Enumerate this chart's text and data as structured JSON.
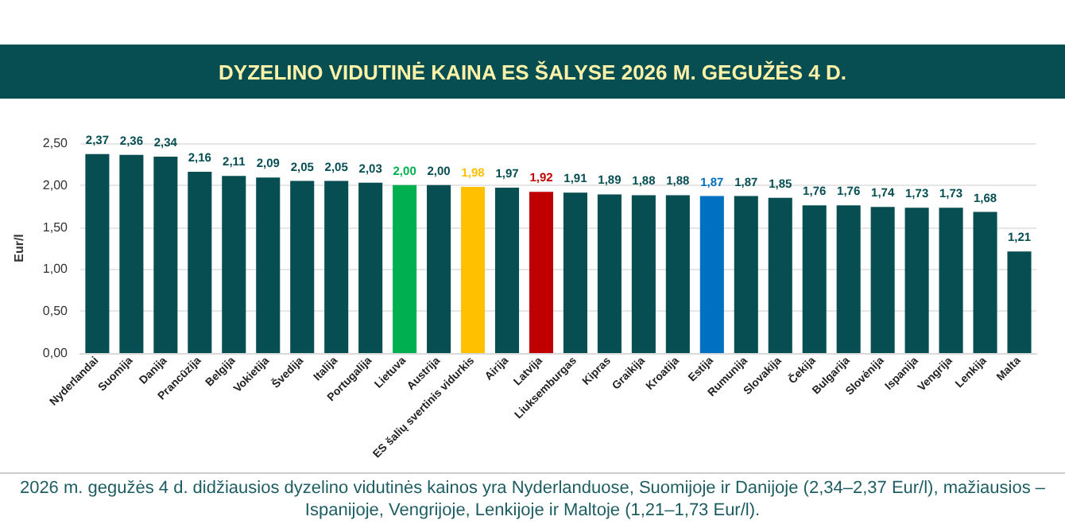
{
  "chart_data": {
    "type": "bar",
    "title": "DYZELINO VIDUTINĖ KAINA ES ŠALYSE 2026 M. GEGUŽĖS 4 D.",
    "ylabel": "Eur/l",
    "categories": [
      "Nyderlandai",
      "Suomija",
      "Danija",
      "Prancūzija",
      "Belgija",
      "Vokietija",
      "Švedija",
      "Italija",
      "Portugalija",
      "Lietuva",
      "Austrija",
      "ES šalių svertinis vidurkis",
      "Airija",
      "Latvija",
      "Liuksemburgas",
      "Kipras",
      "Graikija",
      "Kroatija",
      "Estija",
      "Rumunija",
      "Slovakija",
      "Čekija",
      "Bulgarija",
      "Slovėnija",
      "Ispanija",
      "Vengrija",
      "Lenkija",
      "Malta"
    ],
    "values": [
      2.37,
      2.36,
      2.34,
      2.16,
      2.11,
      2.09,
      2.05,
      2.05,
      2.03,
      2.0,
      2.0,
      1.98,
      1.97,
      1.92,
      1.91,
      1.89,
      1.88,
      1.88,
      1.87,
      1.87,
      1.85,
      1.76,
      1.76,
      1.74,
      1.73,
      1.73,
      1.68,
      1.21
    ],
    "colors": [
      "#074e52",
      "#074e52",
      "#074e52",
      "#074e52",
      "#074e52",
      "#074e52",
      "#074e52",
      "#074e52",
      "#074e52",
      "#00b050",
      "#074e52",
      "#ffc000",
      "#074e52",
      "#c00000",
      "#074e52",
      "#074e52",
      "#074e52",
      "#074e52",
      "#0070c0",
      "#074e52",
      "#074e52",
      "#074e52",
      "#074e52",
      "#074e52",
      "#074e52",
      "#074e52",
      "#074e52",
      "#074e52"
    ],
    "ylim": [
      0,
      2.5
    ],
    "yticks": [
      {
        "value": 0,
        "label": "0,00"
      },
      {
        "value": 0.5,
        "label": "0,50"
      },
      {
        "value": 1,
        "label": "1,00"
      },
      {
        "value": 1.5,
        "label": "1,50"
      },
      {
        "value": 2,
        "label": "2,00"
      },
      {
        "value": 2.5,
        "label": "2,50"
      }
    ],
    "value_labels": [
      "2,37",
      "2,36",
      "2,34",
      "2,16",
      "2,11",
      "2,09",
      "2,05",
      "2,05",
      "2,03",
      "2,00",
      "2,00",
      "1,98",
      "1,97",
      "1,92",
      "1,91",
      "1,89",
      "1,88",
      "1,88",
      "1,87",
      "1,87",
      "1,85",
      "1,76",
      "1,76",
      "1,74",
      "1,73",
      "1,73",
      "1,68",
      "1,21"
    ],
    "grid": "y",
    "annotations": [
      "2026 m. gegužės 4 d. didžiausios dyzelino vidutinės kainos yra Nyderlanduose, Suomijoje ir Danijoje (2,34–2,37 Eur/l), mažiausios – Ispanijoje, Vengrijoje, Lenkijoje ir Maltoje (1,21–1,73 Eur/l)."
    ]
  }
}
